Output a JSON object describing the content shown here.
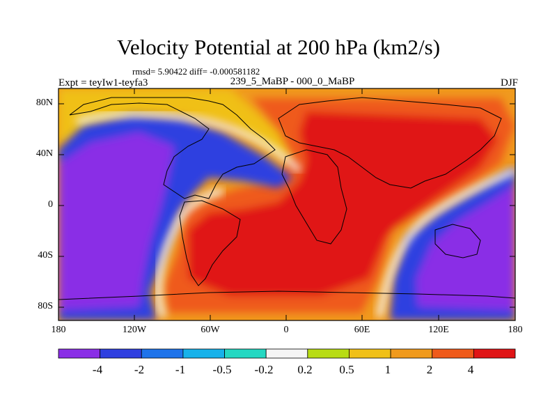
{
  "title": "Velocity Potential at 200 hPa (km2/s)",
  "stats": "rmsd= 5.90422 diff= -0.000581182",
  "expt_label": "Expt = teyIw1-teyfa3",
  "center_label": "239_5_MaBP - 000_0_MaBP",
  "season": "DJF",
  "lat_ticks": [
    "80N",
    "40N",
    "0",
    "40S",
    "80S"
  ],
  "lon_ticks": [
    "180",
    "120W",
    "60W",
    "0",
    "60E",
    "120E",
    "180"
  ],
  "colorbar": {
    "labels": [
      "-4",
      "-2",
      "-1",
      "-0.5",
      "-0.2",
      "0.2",
      "0.5",
      "1",
      "2",
      "4"
    ],
    "colors": [
      "#8a2ee6",
      "#2f3fe0",
      "#1e73ea",
      "#17b2ea",
      "#24d8c2",
      "#f5f5f5",
      "#b8dc14",
      "#f0c018",
      "#f09a1c",
      "#ef5a1a",
      "#e01416"
    ]
  },
  "map_colors": {
    "strong_negative": "#8a2ee6",
    "negative": "#2f3fe0",
    "weak_negative": "#1e73ea",
    "near_zero_negative": "#17b2ea",
    "very_weak_negative": "#24d8c2",
    "neutral": "#f5f5f5",
    "very_weak_positive": "#b8dc14",
    "weak_positive": "#f0c018",
    "moderate_positive": "#f09a1c",
    "positive": "#ef5a1a",
    "strong_positive": "#e01416"
  }
}
